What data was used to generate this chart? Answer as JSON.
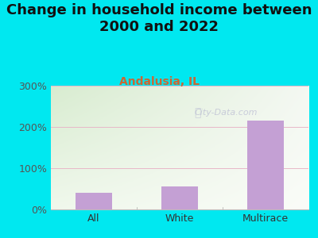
{
  "categories": [
    "All",
    "White",
    "Multirace"
  ],
  "values": [
    40,
    55,
    215
  ],
  "bar_color": "#c4a0d4",
  "title": "Change in household income between\n2000 and 2022",
  "subtitle": "Andalusia, IL",
  "subtitle_color": "#cc6633",
  "title_color": "#111111",
  "bg_color": "#00e8f0",
  "plot_bg_top_left": "#d8ecd0",
  "plot_bg_top_right": "#f0f0ee",
  "plot_bg_bottom": "#f8fdf4",
  "grid_color": "#e8b8c8",
  "tick_label_color": "#555555",
  "xlabel_color": "#333333",
  "ylim": [
    0,
    300
  ],
  "yticks": [
    0,
    100,
    200,
    300
  ],
  "watermark": "City-Data.com",
  "title_fontsize": 13,
  "subtitle_fontsize": 10,
  "tick_fontsize": 9,
  "xlabel_fontsize": 9
}
